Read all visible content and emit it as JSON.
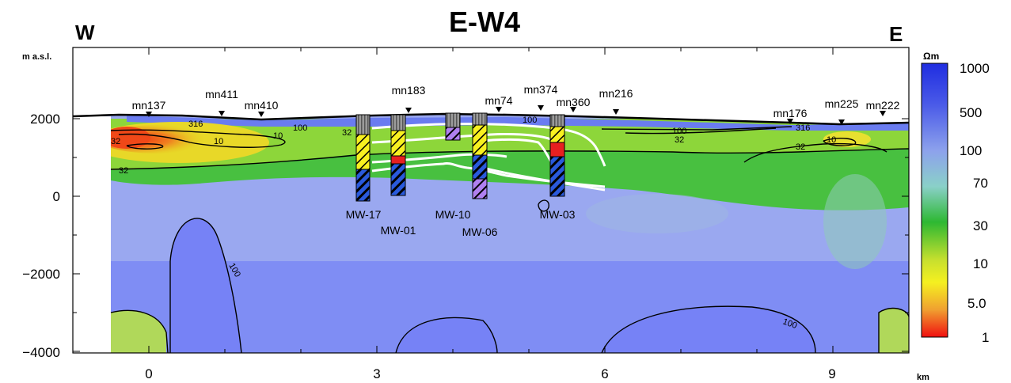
{
  "title": "E-W4",
  "west_label": "W",
  "east_label": "E",
  "y_axis_unit": "m a.s.l.",
  "x_axis_unit": "km",
  "x_ticks": [
    "0",
    "3",
    "6",
    "9"
  ],
  "y_ticks": [
    "2000",
    "0",
    "−2000",
    "−4000"
  ],
  "colorbar": {
    "unit": "Ωm",
    "labels": [
      "1000",
      "500",
      "100",
      "70",
      "30",
      "10",
      "5.0",
      "1"
    ]
  },
  "stations": [
    {
      "name": "mn137",
      "x_km": 0.0
    },
    {
      "name": "mn411",
      "x_km": 0.95
    },
    {
      "name": "mn410",
      "x_km": 1.5
    },
    {
      "name": "mn183",
      "x_km": 3.4
    },
    {
      "name": "mn74",
      "x_km": 4.6
    },
    {
      "name": "mn374",
      "x_km": 5.2
    },
    {
      "name": "mn360",
      "x_km": 5.6
    },
    {
      "name": "mn216",
      "x_km": 6.2
    },
    {
      "name": "mn176",
      "x_km": 8.5
    },
    {
      "name": "mn225",
      "x_km": 9.15
    },
    {
      "name": "mn222",
      "x_km": 9.75
    }
  ],
  "wells": [
    {
      "name": "MW-17",
      "x_km": 2.6
    },
    {
      "name": "MW-01",
      "x_km": 3.0
    },
    {
      "name": "MW-10",
      "x_km": 4.0
    },
    {
      "name": "MW-06",
      "x_km": 4.4
    },
    {
      "name": "MW-03",
      "x_km": 5.4
    }
  ],
  "contour_labels": [
    "32",
    "10",
    "316",
    "10",
    "32",
    "100",
    "32",
    "100",
    "100",
    "32",
    "316",
    "10",
    "32",
    "100",
    "100"
  ]
}
